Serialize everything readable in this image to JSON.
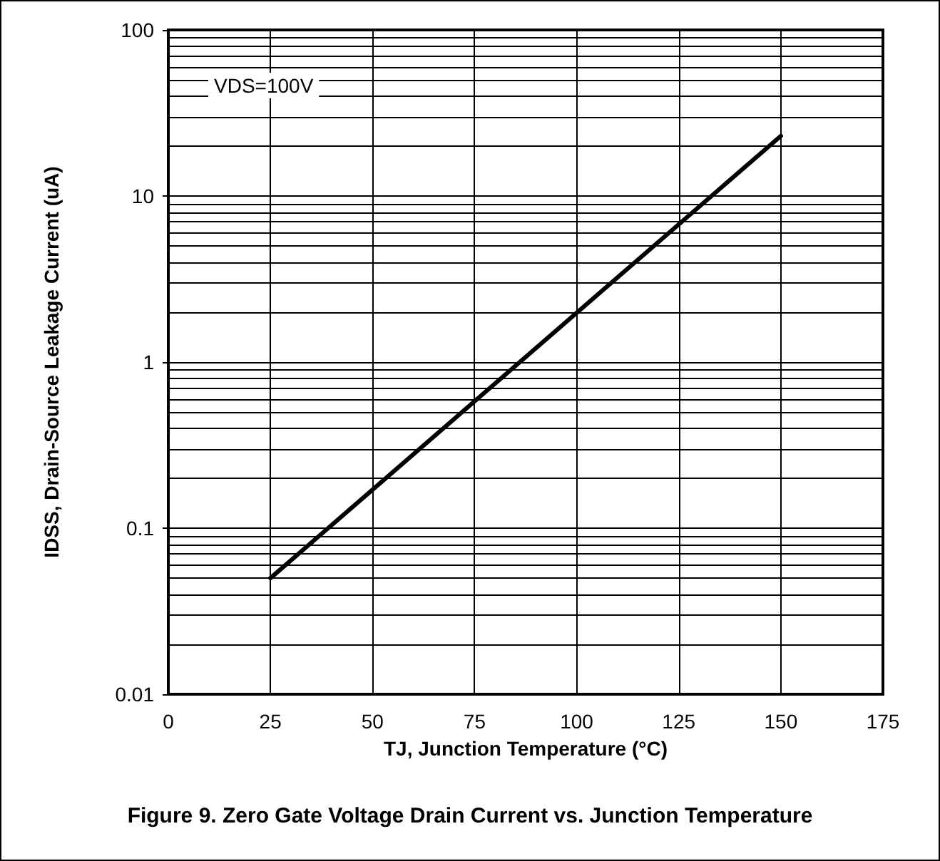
{
  "chart_data": {
    "type": "line",
    "title": "Figure 9. Zero Gate Voltage Drain Current vs. Junction Temperature",
    "xlabel": "TJ, Junction Temperature (°C)",
    "ylabel": "IDSS, Drain-Source Leakage Current (uA)",
    "annotations": [
      "VDS=100V"
    ],
    "x": [
      25,
      150
    ],
    "series": [
      {
        "color": "#000000",
        "values": [
          0.05,
          23
        ]
      }
    ],
    "xlim": [
      0,
      175
    ],
    "xticks": [
      0,
      25,
      50,
      75,
      100,
      125,
      150,
      175
    ],
    "ylim": [
      0.01,
      100
    ],
    "yticks": [
      0.01,
      0.1,
      1,
      10,
      100
    ],
    "log": "y",
    "grid": true,
    "marker": "none",
    "line_style": "solid"
  }
}
